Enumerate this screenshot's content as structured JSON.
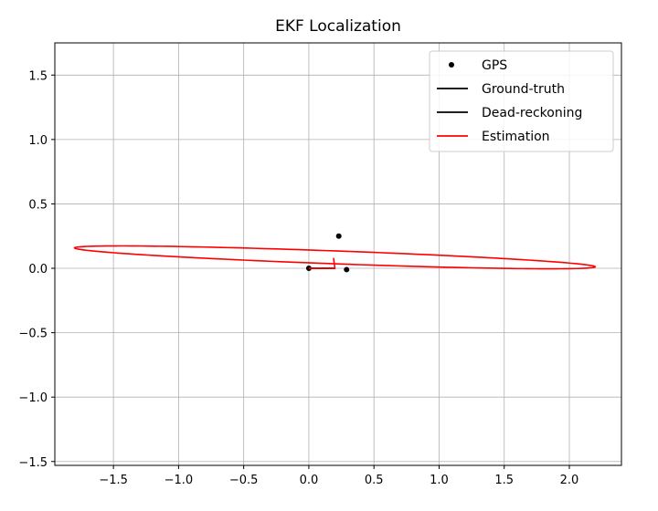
{
  "chart_data": {
    "type": "line",
    "title": "EKF Localization",
    "xlabel": "",
    "ylabel": "",
    "xlim": [
      -1.95,
      2.4
    ],
    "ylim": [
      -1.53,
      1.75
    ],
    "xticks": [
      -1.5,
      -1.0,
      -0.5,
      0.0,
      0.5,
      1.0,
      1.5,
      2.0
    ],
    "xtick_labels": [
      "−1.5",
      "−1.0",
      "−0.5",
      "0.0",
      "0.5",
      "1.0",
      "1.5",
      "2.0"
    ],
    "yticks": [
      -1.5,
      -1.0,
      -0.5,
      0.0,
      0.5,
      1.0,
      1.5
    ],
    "ytick_labels": [
      "−1.5",
      "−1.0",
      "−0.5",
      "0.0",
      "0.5",
      "1.0",
      "1.5"
    ],
    "grid": true,
    "legend_position": "top-right",
    "series": [
      {
        "name": "GPS",
        "style": "points",
        "color": "#000000",
        "x": [
          0.0,
          0.23,
          0.29
        ],
        "y": [
          0.0,
          0.25,
          -0.01
        ]
      },
      {
        "name": "Ground-truth",
        "style": "line",
        "color": "#000000",
        "x": [
          0.0,
          0.05,
          0.1,
          0.15,
          0.2
        ],
        "y": [
          0.0,
          0.0,
          0.0,
          0.0,
          0.0
        ]
      },
      {
        "name": "Dead-reckoning",
        "style": "line",
        "color": "#000000",
        "x": [
          0.0,
          0.05,
          0.1,
          0.15,
          0.2
        ],
        "y": [
          0.0,
          0.0,
          0.0,
          0.0,
          0.0
        ]
      },
      {
        "name": "Estimation",
        "style": "line",
        "color": "#ff0000",
        "x": [
          0.0,
          0.1,
          0.2,
          0.19
        ],
        "y": [
          0.0,
          0.0,
          0.0,
          0.08
        ]
      }
    ],
    "covariance_ellipse": {
      "color": "#ff0000",
      "center": [
        0.2,
        0.085
      ],
      "semi_major": 2.0,
      "semi_minor": 0.05,
      "angle_deg": -2.1
    }
  }
}
